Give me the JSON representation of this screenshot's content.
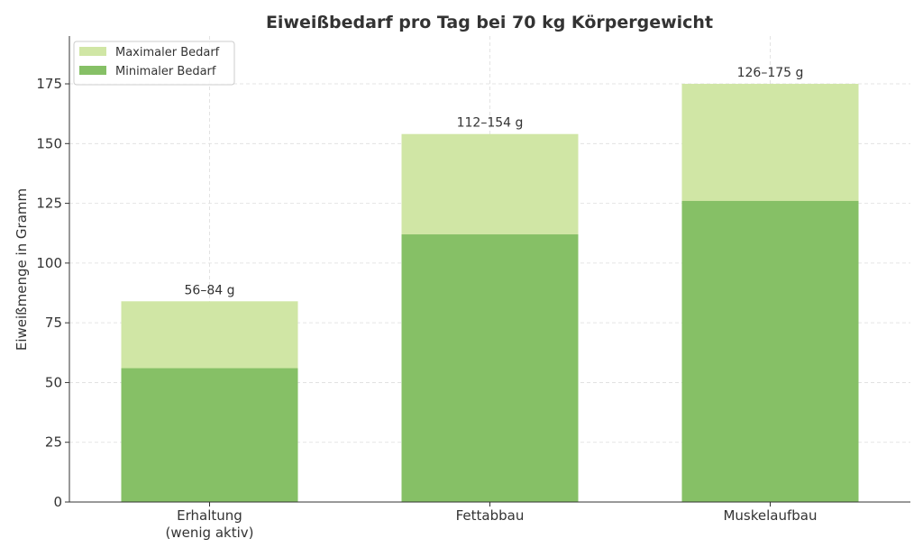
{
  "chart_data": {
    "type": "bar",
    "stacked": "overlay",
    "title": "Eiweißbedarf pro Tag bei 70 kg Körpergewicht",
    "xlabel": "",
    "ylabel": "Eiweißmenge in Gramm",
    "ylim": [
      0,
      195
    ],
    "yticks": [
      0,
      25,
      50,
      75,
      100,
      125,
      150,
      175
    ],
    "categories": [
      [
        "Erhaltung",
        "(wenig aktiv)"
      ],
      [
        "Fettabbau"
      ],
      [
        "Muskelaufbau"
      ]
    ],
    "series": [
      {
        "name": "Maximaler Bedarf",
        "values": [
          84,
          154,
          175
        ],
        "color": "#d0e6a5"
      },
      {
        "name": "Minimaler Bedarf",
        "values": [
          56,
          112,
          126
        ],
        "color": "#86c066"
      }
    ],
    "data_labels": [
      "56–84 g",
      "112–154 g",
      "126–175 g"
    ],
    "grid": true,
    "legend": "top-left"
  }
}
